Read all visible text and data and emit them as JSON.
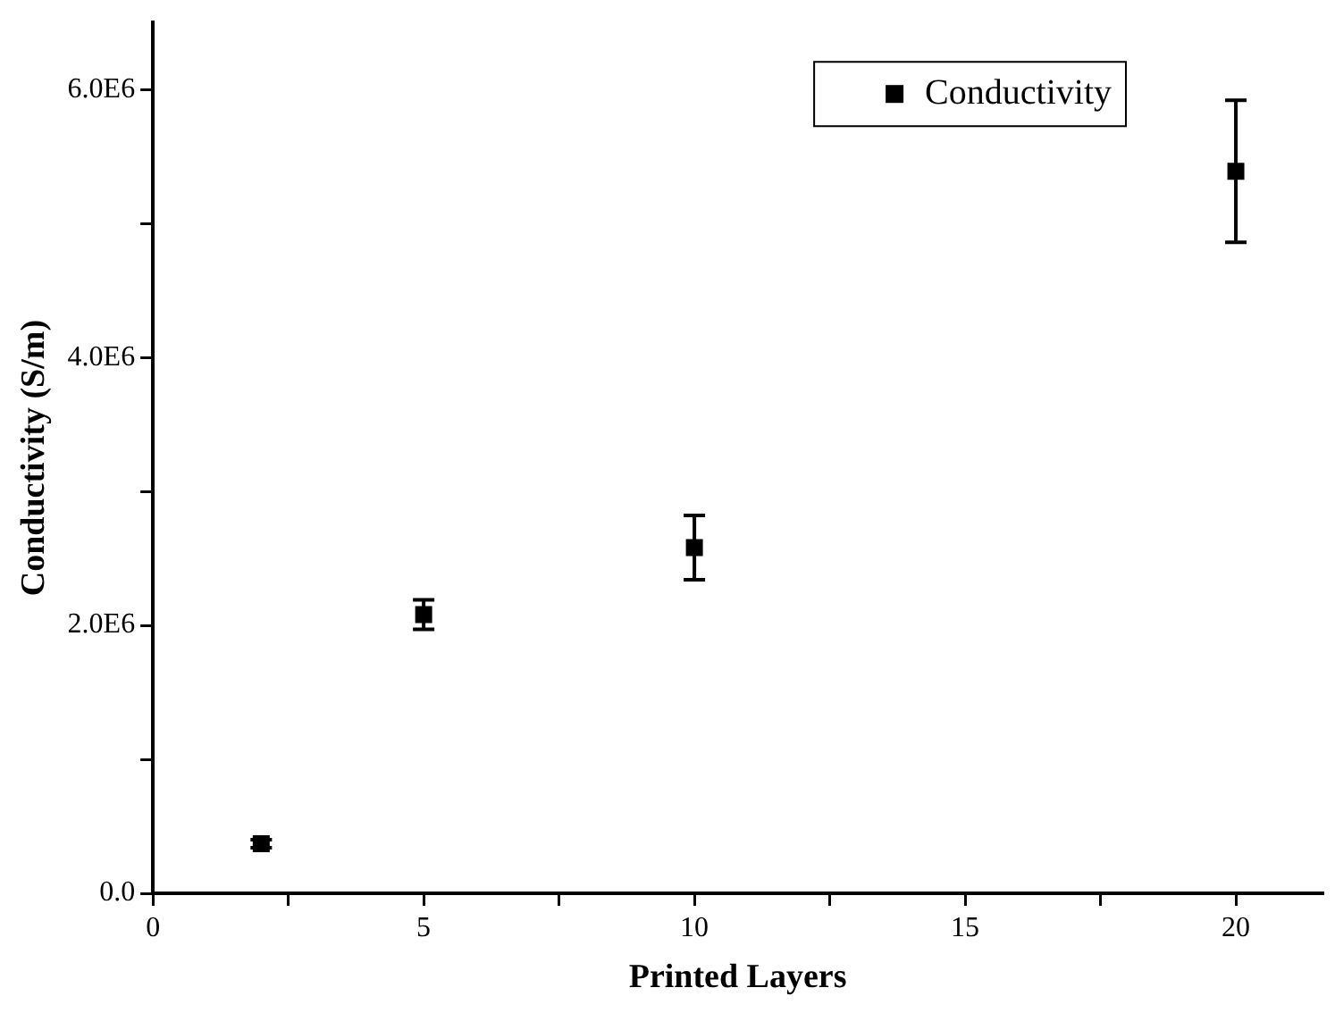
{
  "chart_data": {
    "type": "scatter",
    "xlabel": "Printed Layers",
    "ylabel": "Conductivity (S/m)",
    "x": [
      2,
      5,
      10,
      20
    ],
    "series": [
      {
        "name": "Conductivity",
        "color": "#000000",
        "values": [
          370000,
          2080000,
          2580000,
          5390000
        ],
        "errors": [
          30000,
          110000,
          240000,
          530000
        ]
      }
    ],
    "xlim": [
      0,
      21.6
    ],
    "xticks": [
      0,
      {
        "value": 2.5,
        "label": null
      },
      5,
      {
        "value": 7.5,
        "label": null
      },
      10,
      {
        "value": 12.5,
        "label": null
      },
      15,
      {
        "value": 17.5,
        "label": null
      },
      20
    ],
    "ylim": [
      0,
      6500000
    ],
    "yticks": [
      {
        "value": 0,
        "label": "0.0"
      },
      {
        "value": 1000000,
        "label": null
      },
      {
        "value": 2000000,
        "label": "2.0E6"
      },
      {
        "value": 3000000,
        "label": null
      },
      {
        "value": 4000000,
        "label": "4.0E6"
      },
      {
        "value": 5000000,
        "label": null
      },
      {
        "value": 6000000,
        "label": "6.0E6"
      }
    ],
    "grid": false,
    "legend": "top right",
    "marker": "square"
  }
}
